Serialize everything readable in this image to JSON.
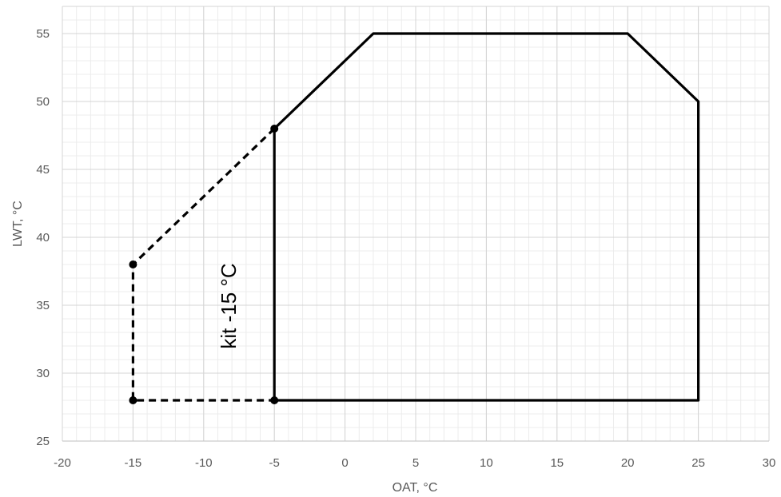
{
  "chart_data": {
    "type": "scatter",
    "title": "",
    "xlabel": "OAT, °C",
    "ylabel": "LWT, °C",
    "xlim": [
      -20,
      30
    ],
    "ylim": [
      25,
      57
    ],
    "x_ticks": [
      -20,
      -15,
      -10,
      -5,
      0,
      5,
      10,
      15,
      20,
      25,
      30
    ],
    "y_ticks": [
      25,
      30,
      35,
      40,
      45,
      50,
      55
    ],
    "x_tick_labels": [
      "-20",
      "-15",
      "-10",
      "-5",
      "0",
      "5",
      "10",
      "15",
      "20",
      "25",
      "30"
    ],
    "y_tick_labels": [
      "25",
      "30",
      "35",
      "40",
      "45",
      "50",
      "55"
    ],
    "grid": true,
    "minor_grid": true,
    "annotation": "kit -15 °C",
    "series": [
      {
        "style": "solid",
        "color": "#000000",
        "points": [
          [
            -5,
            28
          ],
          [
            -5,
            48
          ],
          [
            2,
            55
          ],
          [
            20,
            55
          ],
          [
            25,
            50
          ],
          [
            25,
            28
          ],
          [
            -5,
            28
          ]
        ]
      },
      {
        "style": "dashed",
        "color": "#000000",
        "points": [
          [
            -5,
            48
          ],
          [
            -15,
            38
          ],
          [
            -15,
            28
          ],
          [
            -5,
            28
          ]
        ]
      }
    ],
    "markers": [
      [
        -15,
        38
      ],
      [
        -15,
        28
      ],
      [
        -5,
        48
      ],
      [
        -5,
        28
      ]
    ]
  }
}
